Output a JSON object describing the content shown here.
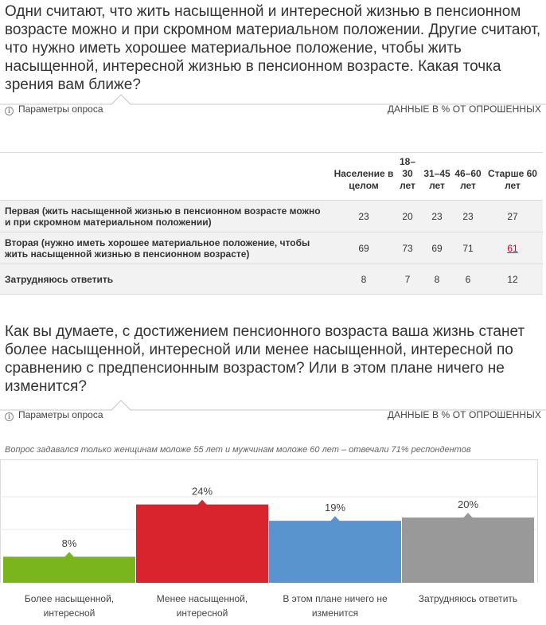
{
  "question1": "Одни считают, что жить насыщенной и интересной жизнью в пенсионном возрасте можно и при скромном материальном положении. Другие считают, что нужно иметь хорошее материальное положение, чтобы жить насыщенной, интересной жизнью в пенсионном возрасте. Какая точка зрения вам ближе?",
  "question2": "Как вы думаете, с достижением пенсионного возраста ваша жизнь станет более насыщенной, интересной или менее насыщенной, интересной по сравнению с предпенсионным возрастом? Или в этом плане ничего не изменится?",
  "params_label": "Параметры опроса",
  "data_label": "ДАННЫЕ В % ОТ ОПРОШЕННЫХ",
  "info_icon": "i",
  "table": {
    "headers": [
      "Население в целом",
      "18–30 лет",
      "31–45 лет",
      "46–60 лет",
      "Старше 60 лет"
    ],
    "rows": [
      {
        "label": "Первая (жить насыщенной жизнью в пенсионном возрасте можно и при скромном материальном положении)",
        "values": [
          "23",
          "20",
          "23",
          "23",
          "27"
        ]
      },
      {
        "label": "Вторая (нужно иметь хорошее материальное положение, чтобы жить насыщенной жизнью в пенсионном возрасте)",
        "values": [
          "69",
          "73",
          "69",
          "71",
          "61"
        ]
      },
      {
        "label": "Затрудняюсь ответить",
        "values": [
          "8",
          "7",
          "8",
          "6",
          "12"
        ]
      }
    ]
  },
  "chart_note": "Вопрос задавался только женщинам моложе 55 лет и мужчинам моложе 60 лет – отвечали 71% респондентов",
  "chart_data": {
    "type": "bar",
    "categories": [
      "Более насыщенной, интересной",
      "Менее насыщенной, интересной",
      "В этом плане ничего не изменится",
      "Затрудняюсь ответить"
    ],
    "values": [
      8,
      24,
      19,
      20
    ],
    "value_labels": [
      "8%",
      "24%",
      "19%",
      "20%"
    ],
    "colors": [
      "#7ab51d",
      "#d9232d",
      "#5a94cf",
      "#999999"
    ],
    "grid_color": "#e8e8e8",
    "ylim": [
      0,
      40
    ],
    "grid": true
  },
  "colors": {
    "highlight": "#d0021b",
    "line": "#c8c8c8"
  }
}
